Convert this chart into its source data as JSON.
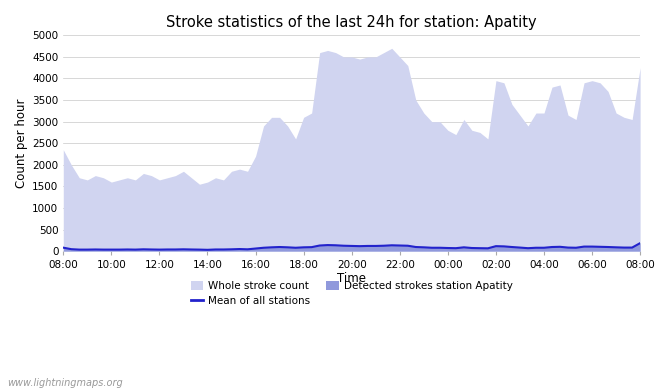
{
  "title": "Stroke statistics of the last 24h for station: Apatity",
  "xlabel": "Time",
  "ylabel": "Count per hour",
  "ylim": [
    0,
    5000
  ],
  "yticks": [
    0,
    500,
    1000,
    1500,
    2000,
    2500,
    3000,
    3500,
    4000,
    4500,
    5000
  ],
  "xtick_labels": [
    "08:00",
    "10:00",
    "12:00",
    "14:00",
    "16:00",
    "18:00",
    "20:00",
    "22:00",
    "00:00",
    "02:00",
    "04:00",
    "06:00",
    "08:00"
  ],
  "whole_stroke_color": "#d0d4f0",
  "detected_stroke_color": "#9099dc",
  "mean_line_color": "#2222cc",
  "background_color": "#ffffff",
  "watermark": "www.lightningmaps.org",
  "whole_stroke_y": [
    2350,
    2000,
    1700,
    1650,
    1750,
    1700,
    1600,
    1650,
    1700,
    1650,
    1800,
    1750,
    1650,
    1700,
    1750,
    1850,
    1700,
    1550,
    1600,
    1700,
    1650,
    1850,
    1900,
    1850,
    2200,
    2900,
    3100,
    3100,
    2900,
    2600,
    3100,
    3200,
    4600,
    4650,
    4600,
    4500,
    4500,
    4450,
    4500,
    4500,
    4600,
    4700,
    4500,
    4300,
    3500,
    3200,
    3000,
    3000,
    2800,
    2700,
    3050,
    2800,
    2750,
    2600,
    3950,
    3900,
    3400,
    3150,
    2900,
    3200,
    3200,
    3800,
    3850,
    3150,
    3050,
    3900,
    3950,
    3900,
    3700,
    3200,
    3100,
    3050,
    4250
  ],
  "detected_stroke_y": [
    100,
    50,
    40,
    40,
    45,
    40,
    40,
    40,
    45,
    40,
    50,
    45,
    40,
    45,
    45,
    50,
    45,
    40,
    35,
    45,
    45,
    50,
    55,
    50,
    70,
    90,
    100,
    110,
    100,
    90,
    100,
    105,
    150,
    160,
    155,
    145,
    140,
    135,
    140,
    140,
    145,
    155,
    150,
    145,
    110,
    100,
    90,
    90,
    85,
    80,
    100,
    85,
    80,
    75,
    130,
    125,
    110,
    95,
    80,
    90,
    90,
    110,
    115,
    95,
    90,
    120,
    120,
    115,
    110,
    100,
    95,
    95,
    200
  ],
  "mean_y": [
    80,
    45,
    35,
    35,
    38,
    35,
    35,
    35,
    38,
    35,
    42,
    38,
    35,
    38,
    38,
    42,
    38,
    35,
    30,
    38,
    38,
    42,
    48,
    42,
    60,
    78,
    88,
    95,
    88,
    78,
    88,
    92,
    130,
    140,
    135,
    125,
    120,
    115,
    120,
    120,
    125,
    135,
    130,
    125,
    95,
    88,
    78,
    78,
    72,
    68,
    88,
    72,
    68,
    65,
    115,
    110,
    95,
    82,
    68,
    78,
    78,
    95,
    100,
    82,
    78,
    105,
    105,
    100,
    95,
    88,
    82,
    82,
    185
  ]
}
